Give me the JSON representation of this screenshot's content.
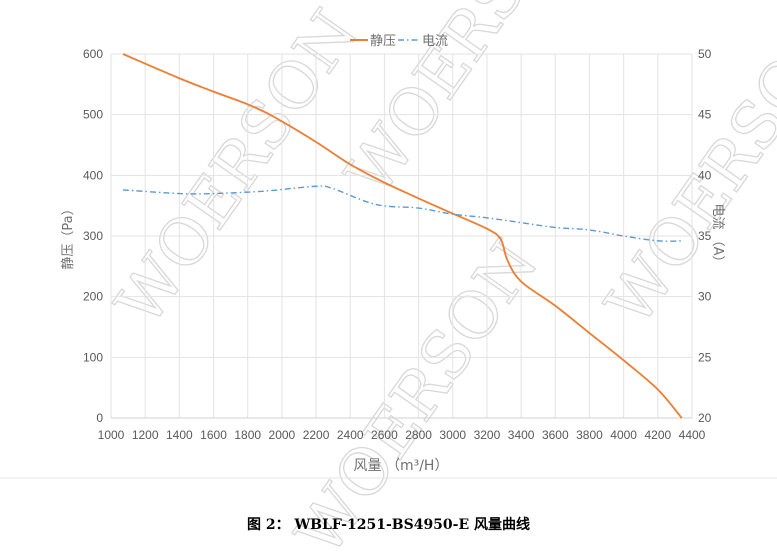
{
  "chart_data": {
    "type": "line",
    "xlabel": "风量 （m³/H）",
    "ylabel": "静压（Pa）",
    "y2label": "电流 （A）",
    "xlim": [
      1000,
      4400
    ],
    "ylim": [
      0,
      600
    ],
    "y2lim": [
      20,
      50
    ],
    "xticks": [
      1000,
      1200,
      1400,
      1600,
      1800,
      2000,
      2200,
      2400,
      2600,
      2800,
      3000,
      3200,
      3400,
      3600,
      3800,
      4000,
      4200,
      4400
    ],
    "yticks": [
      0,
      100,
      200,
      300,
      400,
      500,
      600
    ],
    "y2ticks": [
      20,
      25,
      30,
      35,
      40,
      45,
      50
    ],
    "grid": true,
    "legend_placement": "top",
    "series": [
      {
        "name": "静压",
        "axis": "left",
        "color": "#ED7D31",
        "style": "solid",
        "x": [
          1070,
          1400,
          1600,
          1800,
          1950,
          2200,
          2400,
          2600,
          2800,
          3000,
          3200,
          3280,
          3320,
          3400,
          3600,
          3800,
          4000,
          4200,
          4340
        ],
        "y": [
          600,
          560,
          538,
          517,
          497,
          455,
          418,
          388,
          362,
          337,
          312,
          295,
          260,
          225,
          185,
          140,
          95,
          47,
          0
        ]
      },
      {
        "name": "电流",
        "axis": "right",
        "color": "#5B9BD5",
        "style": "dash-dot",
        "x": [
          1070,
          1400,
          1600,
          1900,
          2200,
          2300,
          2550,
          2800,
          3000,
          3200,
          3400,
          3600,
          3800,
          4000,
          4200,
          4340
        ],
        "y": [
          38.8,
          38.5,
          38.5,
          38.7,
          39.1,
          38.9,
          37.6,
          37.3,
          36.8,
          36.5,
          36.1,
          35.7,
          35.5,
          35.0,
          34.6,
          34.6
        ]
      }
    ]
  },
  "caption": "图 2：   WBLF-1251-BS4950-E 风量曲线",
  "watermark": "WOERSON"
}
